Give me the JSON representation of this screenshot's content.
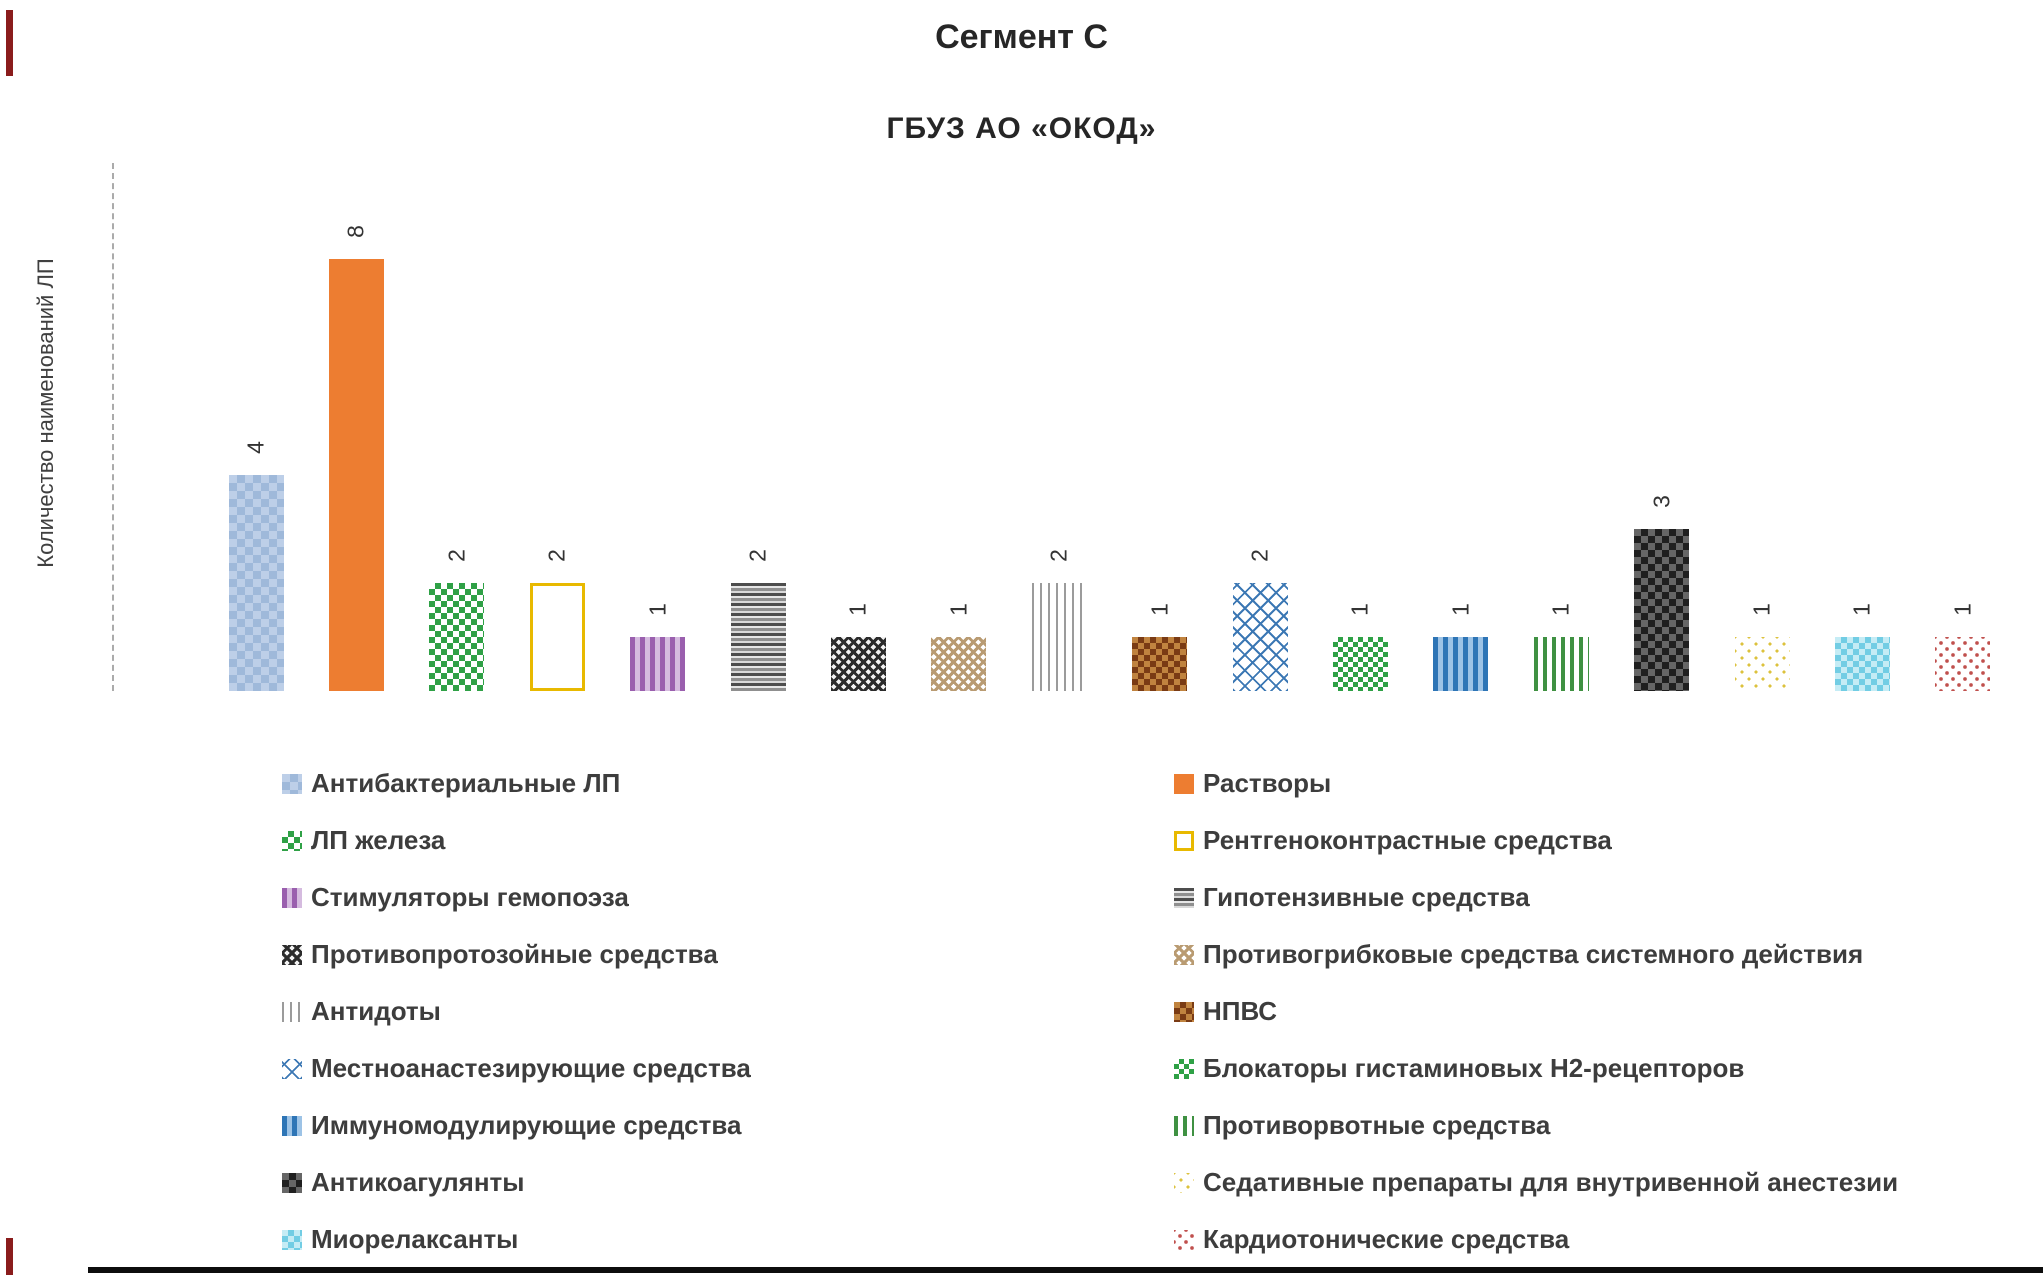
{
  "page": {
    "background": "#ffffff"
  },
  "chart_data": {
    "type": "bar",
    "title": "Сегмент С",
    "subtitle": "ГБУЗ АО «ОКОД»",
    "ylabel": "Количество наименований ЛП",
    "xlabel": "",
    "ylim": [
      0,
      8.5
    ],
    "grid": false,
    "bar_value_labels_rotated": true,
    "legend_position": "bottom, 2 columns, row-major order",
    "series": [
      {
        "name": "Антибактериальные ЛП",
        "value": 4,
        "pattern": "blue-check",
        "color": "#9fb9da"
      },
      {
        "name": "Растворы",
        "value": 8,
        "pattern": "orange-solid",
        "color": "#ed7d31"
      },
      {
        "name": "ЛП железа",
        "value": 2,
        "pattern": "green-check",
        "color": "#2fa146"
      },
      {
        "name": "Рентгеноконтрастные средства",
        "value": 2,
        "pattern": "yellow-outline",
        "color": "#e8b900"
      },
      {
        "name": "Стимуляторы гемопоэза",
        "value": 1,
        "pattern": "purple-vstripe",
        "color": "#9a5fae"
      },
      {
        "name": "Гипотензивные средства",
        "value": 2,
        "pattern": "gray-hstripe",
        "color": "#595959"
      },
      {
        "name": "Противопротозойные средства",
        "value": 1,
        "pattern": "black-crosshatch",
        "color": "#2b2b2b"
      },
      {
        "name": "Противогрибковые средства системного действия",
        "value": 1,
        "pattern": "tan-crosshatch",
        "color": "#b99b72"
      },
      {
        "name": "Антидоты",
        "value": 2,
        "pattern": "thin-vlines",
        "color": "#9b9b9b"
      },
      {
        "name": "НПВС",
        "value": 1,
        "pattern": "maroon-check",
        "color": "#7a3b14"
      },
      {
        "name": "Местноанастезирующие средства",
        "value": 2,
        "pattern": "blue-lattice",
        "color": "#3c78b4"
      },
      {
        "name": "Блокаторы гистаминовых Н2-рецепторов",
        "value": 1,
        "pattern": "green-check-dense",
        "color": "#2fa146"
      },
      {
        "name": "Иммуномодулирующие средства",
        "value": 1,
        "pattern": "blue-vstripe",
        "color": "#2e75b6"
      },
      {
        "name": "Противорвотные средства",
        "value": 1,
        "pattern": "green-vstripe",
        "color": "#3f9142"
      },
      {
        "name": "Антикоагулянты",
        "value": 3,
        "pattern": "dark-check",
        "color": "#1f1f1f"
      },
      {
        "name": "Седативные препараты для внутривенной анестезии",
        "value": 1,
        "pattern": "yellow-dots",
        "color": "#dcc23c"
      },
      {
        "name": "Миорелаксанты",
        "value": 1,
        "pattern": "cyan-check",
        "color": "#72cde4"
      },
      {
        "name": "Кардиотонические средства",
        "value": 1,
        "pattern": "red-dots",
        "color": "#c0504d"
      }
    ]
  }
}
